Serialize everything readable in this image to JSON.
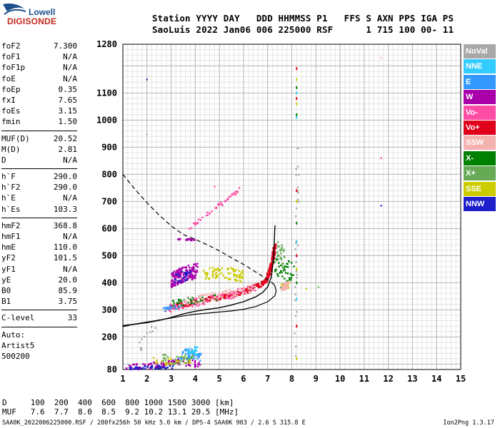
{
  "logo": {
    "line1": "Lowell",
    "line2": "DIGISONDE"
  },
  "header": {
    "line1": "Station YYYY DAY   DDD HHMMSS P1   FFS S AXN PPS IGA PS",
    "line2": "SaoLuis 2022 Jan06 006 225000 RSF      1 715 100 00- 11"
  },
  "params": {
    "group1": [
      {
        "name": "foF2",
        "value": "7.300"
      },
      {
        "name": "foF1",
        "value": "N/A"
      },
      {
        "name": "foF1p",
        "value": "N/A"
      },
      {
        "name": "foE",
        "value": "N/A"
      },
      {
        "name": "foEp",
        "value": "0.35"
      },
      {
        "name": "fxI",
        "value": "7.65"
      },
      {
        "name": "foEs",
        "value": "3.15"
      },
      {
        "name": "fmin",
        "value": "1.50"
      }
    ],
    "group2": [
      {
        "name": "MUF(D)",
        "value": "20.52"
      },
      {
        "name": "M(D)",
        "value": "2.81"
      },
      {
        "name": "D",
        "value": "N/A"
      }
    ],
    "group3": [
      {
        "name": "h`F",
        "value": "290.0"
      },
      {
        "name": "h`F2",
        "value": "290.0"
      },
      {
        "name": "h`E",
        "value": "N/A"
      },
      {
        "name": "h`Es",
        "value": "103.3"
      }
    ],
    "group4": [
      {
        "name": "hmF2",
        "value": "368.8"
      },
      {
        "name": "hmF1",
        "value": "N/A"
      },
      {
        "name": "hmE",
        "value": "110.0"
      },
      {
        "name": "yF2",
        "value": "101.5"
      },
      {
        "name": "yF1",
        "value": "N/A"
      },
      {
        "name": "yE",
        "value": "20.0"
      },
      {
        "name": "B0",
        "value": "85.9"
      },
      {
        "name": "B1",
        "value": "3.75"
      }
    ],
    "group5": [
      {
        "name": "C-level",
        "value": "33"
      }
    ],
    "auto": [
      "Auto:",
      "Artist5",
      "500200"
    ]
  },
  "legend": [
    {
      "label": "NoVal",
      "color": "#a8a8a8"
    },
    {
      "label": "NNE",
      "color": "#33ccff"
    },
    {
      "label": "E",
      "color": "#3399ff"
    },
    {
      "label": "W",
      "color": "#aa00aa"
    },
    {
      "label": "Vo-",
      "color": "#ff4da6"
    },
    {
      "label": "Vo+",
      "color": "#e0001b"
    },
    {
      "label": "SSW",
      "color": "#f4b2ae"
    },
    {
      "label": "X-",
      "color": "#008000"
    },
    {
      "label": "X+",
      "color": "#66aa55"
    },
    {
      "label": "SSE",
      "color": "#cccc00"
    },
    {
      "label": "NNW",
      "color": "#1f1fcc"
    }
  ],
  "bottom": {
    "d_row": "D     100  200  400  600  800 1000 1500 3000 [km]",
    "muf_row": "MUF   7.6  7.7  8.0  8.5  9.2 10.2 13.1 20.5 [MHz]",
    "footer_left": "SAA0K_2022006225000.RSF / 280fx256h 50 kHz 5.0 km / DPS-4 SAA0K 903 / 2.6 S 315.8 E",
    "footer_right": "Ion2Png 1.3.17"
  },
  "chart_data": {
    "type": "scatter",
    "xlim": [
      1,
      15
    ],
    "ylim": [
      80,
      1280
    ],
    "x_ticks": [
      1,
      2,
      3,
      4,
      5,
      6,
      7,
      8,
      9,
      10,
      11,
      12,
      13,
      14,
      15
    ],
    "y_ticks": [
      80,
      200,
      300,
      400,
      500,
      600,
      700,
      800,
      900,
      1000,
      1100,
      1280
    ],
    "grid": true,
    "legend_position": "right",
    "series": [
      {
        "legend": "Vo+",
        "style": "cluster",
        "clusters": [
          {
            "points": [
              [
                3.0,
                310
              ],
              [
                3.6,
                320
              ],
              [
                4.2,
                333
              ],
              [
                4.8,
                343
              ],
              [
                5.3,
                352
              ],
              [
                5.8,
                362
              ],
              [
                6.2,
                372
              ],
              [
                6.6,
                388
              ],
              [
                6.9,
                405
              ],
              [
                7.05,
                430
              ],
              [
                7.15,
                460
              ],
              [
                7.25,
                500
              ],
              [
                7.3,
                540
              ]
            ],
            "spread_y": 9,
            "count": 320
          }
        ]
      },
      {
        "legend": "W",
        "style": "cluster",
        "clusters": [
          {
            "points": [
              [
                3.0,
                410
              ],
              [
                3.5,
                430
              ],
              [
                4.1,
                445
              ]
            ],
            "spread_y": 28,
            "count": 170
          },
          {
            "points": [
              [
                1.1,
                85
              ],
              [
                2.0,
                92
              ],
              [
                2.7,
                100
              ],
              [
                3.3,
                110
              ],
              [
                4.2,
                98
              ]
            ],
            "spread_y": 12,
            "count": 110
          },
          {
            "points": [
              [
                3.3,
                560
              ],
              [
                4.0,
                558
              ]
            ],
            "spread_y": 3,
            "count": 22
          }
        ]
      },
      {
        "legend": "Vo-",
        "style": "cluster",
        "clusters": [
          {
            "points": [
              [
                3.8,
                600
              ],
              [
                4.3,
                640
              ],
              [
                4.9,
                680
              ],
              [
                5.5,
                720
              ],
              [
                5.9,
                752
              ]
            ],
            "spread_y": 6,
            "count": 50
          },
          {
            "points": [
              [
                2.8,
                300
              ],
              [
                3.6,
                320
              ],
              [
                4.5,
                335
              ],
              [
                5.5,
                355
              ],
              [
                6.5,
                385
              ]
            ],
            "spread_y": 14,
            "count": 90
          }
        ]
      },
      {
        "legend": "SSE",
        "style": "cluster",
        "clusters": [
          {
            "points": [
              [
                4.3,
                430
              ],
              [
                4.9,
                435
              ],
              [
                5.5,
                432
              ],
              [
                6.0,
                422
              ]
            ],
            "spread_y": 22,
            "count": 80
          },
          {
            "points": [
              [
                2.2,
                110
              ],
              [
                3.0,
                110
              ],
              [
                3.8,
                118
              ]
            ],
            "spread_y": 14,
            "count": 35
          },
          {
            "points": [
              [
                7.6,
                385
              ],
              [
                7.9,
                390
              ]
            ],
            "spread_y": 10,
            "count": 25
          }
        ]
      },
      {
        "legend": "E",
        "style": "cluster",
        "clusters": [
          {
            "points": [
              [
                3.3,
                130
              ],
              [
                3.8,
                140
              ],
              [
                4.2,
                128
              ]
            ],
            "spread_y": 18,
            "count": 60
          },
          {
            "points": [
              [
                2.6,
                300
              ],
              [
                3.4,
                315
              ]
            ],
            "spread_y": 8,
            "count": 18
          }
        ]
      },
      {
        "legend": "NNE",
        "style": "cluster",
        "clusters": [
          {
            "points": [
              [
                3.7,
                148
              ],
              [
                4.1,
                150
              ]
            ],
            "spread_y": 14,
            "count": 28
          }
        ]
      },
      {
        "legend": "X-",
        "style": "cluster",
        "clusters": [
          {
            "points": [
              [
                7.3,
                480
              ],
              [
                7.6,
                410
              ],
              [
                7.8,
                440
              ],
              [
                8.1,
                450
              ]
            ],
            "spread_y": 40,
            "count": 45
          },
          {
            "points": [
              [
                3.0,
                320
              ],
              [
                4.0,
                335
              ],
              [
                5.0,
                348
              ]
            ],
            "spread_y": 14,
            "count": 40
          }
        ]
      },
      {
        "legend": "X+",
        "style": "cluster",
        "clusters": [
          {
            "points": [
              [
                7.4,
                520
              ],
              [
                7.7,
                480
              ]
            ],
            "spread_y": 40,
            "count": 30
          },
          {
            "points": [
              [
                2.5,
                120
              ],
              [
                3.2,
                115
              ],
              [
                3.9,
                120
              ]
            ],
            "spread_y": 16,
            "count": 35
          }
        ]
      },
      {
        "legend": "SSW",
        "style": "cluster",
        "clusters": [
          {
            "points": [
              [
                3.5,
                330
              ],
              [
                4.5,
                345
              ],
              [
                5.5,
                360
              ],
              [
                6.4,
                378
              ]
            ],
            "spread_y": 16,
            "count": 70
          },
          {
            "points": [
              [
                7.6,
                380
              ],
              [
                7.9,
                395
              ]
            ],
            "spread_y": 10,
            "count": 35
          }
        ]
      },
      {
        "legend": "NNW",
        "style": "cluster",
        "clusters": [
          {
            "points": [
              [
                1.2,
                85
              ],
              [
                2.2,
                88
              ],
              [
                3.1,
                90
              ]
            ],
            "spread_y": 6,
            "count": 40
          },
          {
            "points": [
              [
                3.2,
                415
              ],
              [
                3.8,
                430
              ]
            ],
            "spread_y": 20,
            "count": 25
          }
        ]
      },
      {
        "legend": "NoVal",
        "style": "cluster",
        "clusters": [
          {
            "points": [
              [
                8.15,
                150
              ],
              [
                8.2,
                500
              ],
              [
                8.25,
                900
              ]
            ],
            "spread_y": 45,
            "count": 30
          },
          {
            "points": [
              [
                1.5,
                130
              ],
              [
                2.0,
                200
              ],
              [
                2.5,
                250
              ]
            ],
            "spread_y": 20,
            "count": 12
          }
        ]
      }
    ],
    "lines": {
      "virtual_height_trace": {
        "x": [
          1.0,
          1.5,
          2.0,
          2.5,
          3.0,
          3.5,
          4.0,
          4.5,
          5.0,
          5.5,
          6.0,
          6.5,
          6.8,
          7.0,
          7.15,
          7.25,
          7.3
        ],
        "y": [
          242,
          247,
          253,
          261,
          272,
          285,
          295,
          302,
          308,
          318,
          330,
          348,
          365,
          385,
          420,
          500,
          612
        ]
      },
      "profile_curve": {
        "x": [
          1.0,
          1.5,
          2.0,
          2.5,
          3.0,
          3.5,
          4.0,
          4.5,
          5.0,
          5.5,
          6.0,
          6.5,
          7.0,
          7.3,
          7.35,
          7.3,
          7.2
        ],
        "y": [
          238,
          248,
          255,
          262,
          270,
          278,
          284,
          288,
          292,
          296,
          302,
          312,
          330,
          352,
          370,
          388,
          400
        ]
      },
      "muf_dashed": {
        "x": [
          1.0,
          1.5,
          2.0,
          2.5,
          3.0,
          3.5,
          4.0,
          4.5,
          5.0,
          5.5,
          6.0,
          6.5,
          7.0,
          7.25
        ],
        "y": [
          800,
          745,
          695,
          650,
          610,
          578,
          560,
          540,
          518,
          492,
          468,
          440,
          412,
          395
        ]
      },
      "column_dots": {
        "x": 8.2,
        "y": [
          120,
          240,
          340,
          400,
          450,
          500,
          550,
          620,
          700,
          740,
          1010,
          1020,
          1060,
          1080,
          1100,
          1120,
          1150,
          1190
        ]
      },
      "stray_points": [
        {
          "x": 2.0,
          "y": 1150,
          "legend": "NNW"
        },
        {
          "x": 2.0,
          "y": 948,
          "legend": "NoVal"
        },
        {
          "x": 4.8,
          "y": 755,
          "legend": "Vo-"
        },
        {
          "x": 11.7,
          "y": 1230,
          "legend": "SSW"
        },
        {
          "x": 11.7,
          "y": 860,
          "legend": "Vo-"
        },
        {
          "x": 11.7,
          "y": 685,
          "legend": "NNW"
        },
        {
          "x": 9.1,
          "y": 385,
          "legend": "X+"
        },
        {
          "x": 8.6,
          "y": 378,
          "legend": "SSE"
        }
      ]
    }
  }
}
